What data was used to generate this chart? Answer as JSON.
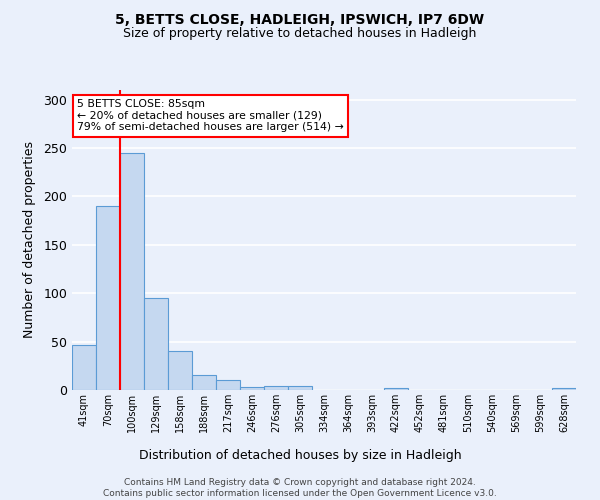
{
  "title1": "5, BETTS CLOSE, HADLEIGH, IPSWICH, IP7 6DW",
  "title2": "Size of property relative to detached houses in Hadleigh",
  "xlabel": "Distribution of detached houses by size in Hadleigh",
  "ylabel": "Number of detached properties",
  "categories": [
    "41sqm",
    "70sqm",
    "100sqm",
    "129sqm",
    "158sqm",
    "188sqm",
    "217sqm",
    "246sqm",
    "276sqm",
    "305sqm",
    "334sqm",
    "364sqm",
    "393sqm",
    "422sqm",
    "452sqm",
    "481sqm",
    "510sqm",
    "540sqm",
    "569sqm",
    "599sqm",
    "628sqm"
  ],
  "values": [
    47,
    190,
    245,
    95,
    40,
    15,
    10,
    3,
    4,
    4,
    0,
    0,
    0,
    2,
    0,
    0,
    0,
    0,
    0,
    0,
    2
  ],
  "bar_color": "#c5d8f0",
  "bar_edge_color": "#5b9bd5",
  "red_line_x": 1.5,
  "annotation_text": "5 BETTS CLOSE: 85sqm\n← 20% of detached houses are smaller (129)\n79% of semi-detached houses are larger (514) →",
  "annotation_box_color": "white",
  "annotation_box_edge_color": "red",
  "red_line_color": "red",
  "ylim": [
    0,
    310
  ],
  "yticks": [
    0,
    50,
    100,
    150,
    200,
    250,
    300
  ],
  "background_color": "#eaf0fb",
  "grid_color": "white",
  "footer": "Contains HM Land Registry data © Crown copyright and database right 2024.\nContains public sector information licensed under the Open Government Licence v3.0."
}
